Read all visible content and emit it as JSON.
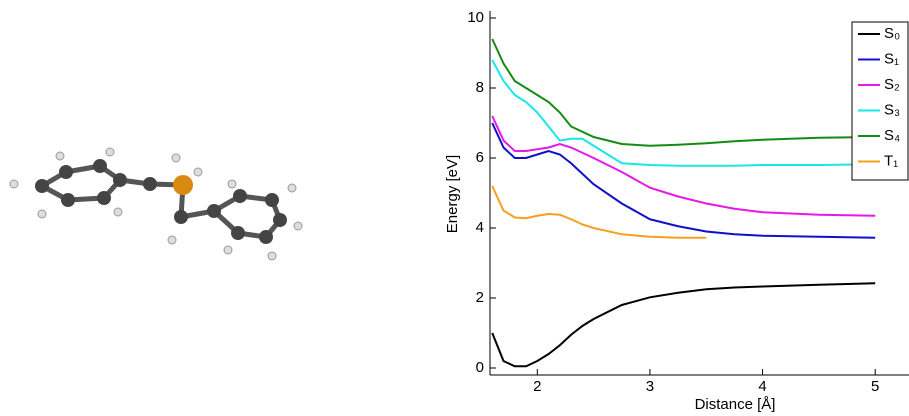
{
  "chart_data": {
    "type": "line",
    "xlabel": "Distance [Å]",
    "ylabel": "Energy [eV]",
    "x": [
      1.6,
      1.7,
      1.8,
      1.9,
      2.0,
      2.1,
      2.2,
      2.3,
      2.4,
      2.5,
      2.75,
      3.0,
      3.25,
      3.5,
      3.75,
      4.0,
      4.5,
      5.0
    ],
    "series": [
      {
        "name": "S₀",
        "color": "#000000",
        "values": [
          1.0,
          0.2,
          0.05,
          0.05,
          0.2,
          0.4,
          0.65,
          0.95,
          1.2,
          1.4,
          1.8,
          2.02,
          2.15,
          2.25,
          2.3,
          2.33,
          2.38,
          2.42
        ]
      },
      {
        "name": "S₁",
        "color": "#1010c8",
        "values": [
          7.0,
          6.3,
          6.0,
          6.0,
          6.1,
          6.2,
          6.1,
          5.85,
          5.55,
          5.25,
          4.7,
          4.25,
          4.05,
          3.9,
          3.82,
          3.78,
          3.75,
          3.72
        ]
      },
      {
        "name": "S₂",
        "color": "#e619e6",
        "values": [
          7.2,
          6.5,
          6.2,
          6.2,
          6.25,
          6.3,
          6.4,
          6.3,
          6.15,
          6.0,
          5.6,
          5.15,
          4.9,
          4.7,
          4.55,
          4.45,
          4.38,
          4.35
        ]
      },
      {
        "name": "S₃",
        "color": "#19e6e6",
        "values": [
          8.8,
          8.2,
          7.8,
          7.6,
          7.3,
          6.9,
          6.5,
          6.55,
          6.55,
          6.35,
          5.85,
          5.8,
          5.78,
          5.78,
          5.78,
          5.8,
          5.8,
          5.82
        ]
      },
      {
        "name": "S₄",
        "color": "#148c14",
        "values": [
          9.4,
          8.7,
          8.2,
          8.0,
          7.8,
          7.6,
          7.3,
          6.9,
          6.75,
          6.6,
          6.4,
          6.35,
          6.38,
          6.42,
          6.48,
          6.52,
          6.58,
          6.6
        ]
      },
      {
        "name": "T₁",
        "color": "#f5a01e",
        "values": [
          5.2,
          4.5,
          4.3,
          4.28,
          4.35,
          4.4,
          4.38,
          4.25,
          4.1,
          4.0,
          3.82,
          3.75,
          3.72,
          3.72,
          null,
          null,
          null,
          null
        ]
      }
    ],
    "xlim": [
      1.58,
      5.3
    ],
    "xticks": [
      2,
      3,
      4,
      5
    ],
    "ylim": [
      -0.2,
      10.2
    ],
    "yticks": [
      0,
      2,
      4,
      6,
      8,
      10
    ],
    "legend": "upper right"
  }
}
